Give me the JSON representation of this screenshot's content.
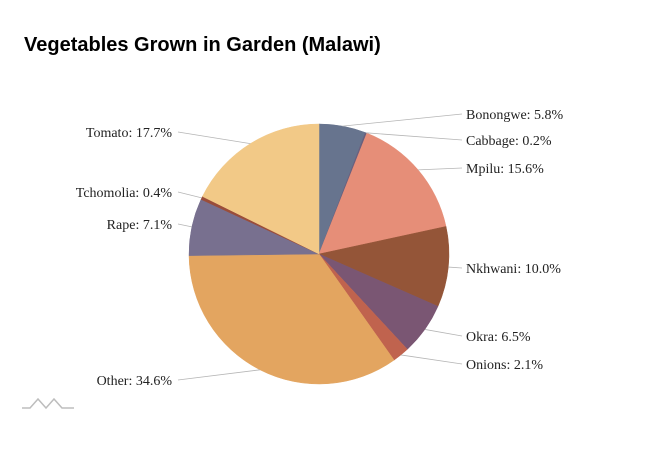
{
  "chart_data": {
    "type": "pie",
    "title": "Vegetables Grown in Garden (Malawi)",
    "slices": [
      {
        "name": "Bonongwe",
        "value": 5.8,
        "label": "Bonongwe: 5.8%",
        "color": "#67748e"
      },
      {
        "name": "Cabbage",
        "value": 0.2,
        "label": "Cabbage: 0.2%",
        "color": "#6a5f7d"
      },
      {
        "name": "Mpilu",
        "value": 15.6,
        "label": "Mpilu: 15.6%",
        "color": "#e68e78"
      },
      {
        "name": "Nkhwani",
        "value": 10.0,
        "label": "Nkhwani: 10.0%",
        "color": "#945538"
      },
      {
        "name": "Okra",
        "value": 6.5,
        "label": "Okra: 6.5%",
        "color": "#7a5673"
      },
      {
        "name": "Onions",
        "value": 2.1,
        "label": "Onions: 2.1%",
        "color": "#c0634e"
      },
      {
        "name": "Other",
        "value": 34.6,
        "label": "Other: 34.6%",
        "color": "#e3a560"
      },
      {
        "name": "Rape",
        "value": 7.1,
        "label": "Rape: 7.1%",
        "color": "#78708f"
      },
      {
        "name": "Tchomolia",
        "value": 0.4,
        "label": "Tchomolia: 0.4%",
        "color": "#9a4d3a"
      },
      {
        "name": "Tomato",
        "value": 17.7,
        "label": "Tomato: 17.7%",
        "color": "#f2c987"
      }
    ]
  }
}
